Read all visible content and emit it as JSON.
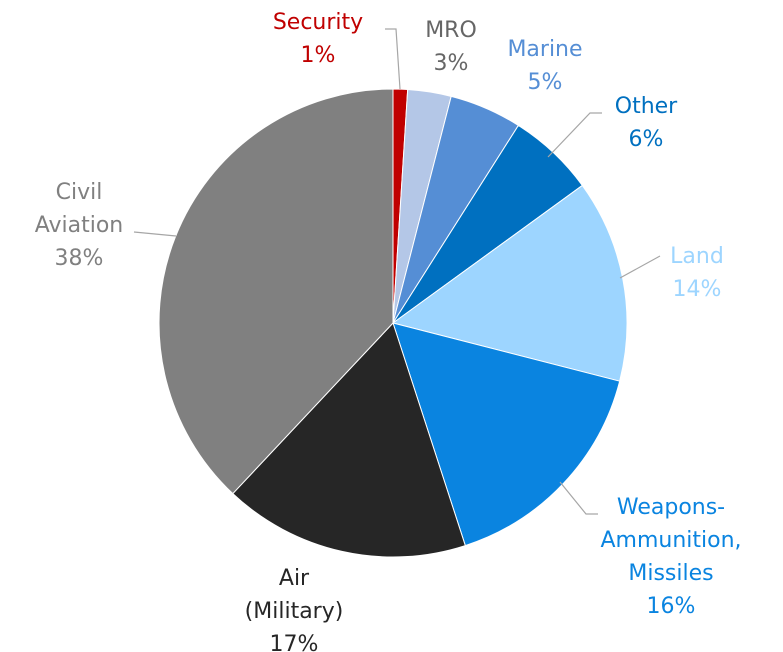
{
  "chart_data": {
    "type": "pie",
    "title": "",
    "slices": [
      {
        "label_lines": [
          "Security"
        ],
        "pct_label": "1%",
        "value": 1,
        "color": "#c00000",
        "label_color": "#c00000"
      },
      {
        "label_lines": [
          "MRO"
        ],
        "pct_label": "3%",
        "value": 3,
        "color": "#b4c7e7",
        "label_color": "#666666"
      },
      {
        "label_lines": [
          "Marine"
        ],
        "pct_label": "5%",
        "value": 5,
        "color": "#558ed5",
        "label_color": "#558ed5"
      },
      {
        "label_lines": [
          "Other"
        ],
        "pct_label": "6%",
        "value": 6,
        "color": "#0070c0",
        "label_color": "#0070c0"
      },
      {
        "label_lines": [
          "Land"
        ],
        "pct_label": "14%",
        "value": 14,
        "color": "#9dd5ff",
        "label_color": "#9dd5ff"
      },
      {
        "label_lines": [
          "Weapons-",
          "Ammunition,",
          "Missiles"
        ],
        "pct_label": "16%",
        "value": 16,
        "color": "#0a84e0",
        "label_color": "#0a84e0"
      },
      {
        "label_lines": [
          "Air",
          "(Military)"
        ],
        "pct_label": "17%",
        "value": 17,
        "color": "#262626",
        "label_color": "#262626"
      },
      {
        "label_lines": [
          "Civil",
          "Aviation"
        ],
        "pct_label": "38%",
        "value": 38,
        "color": "#808080",
        "label_color": "#808080"
      }
    ]
  }
}
